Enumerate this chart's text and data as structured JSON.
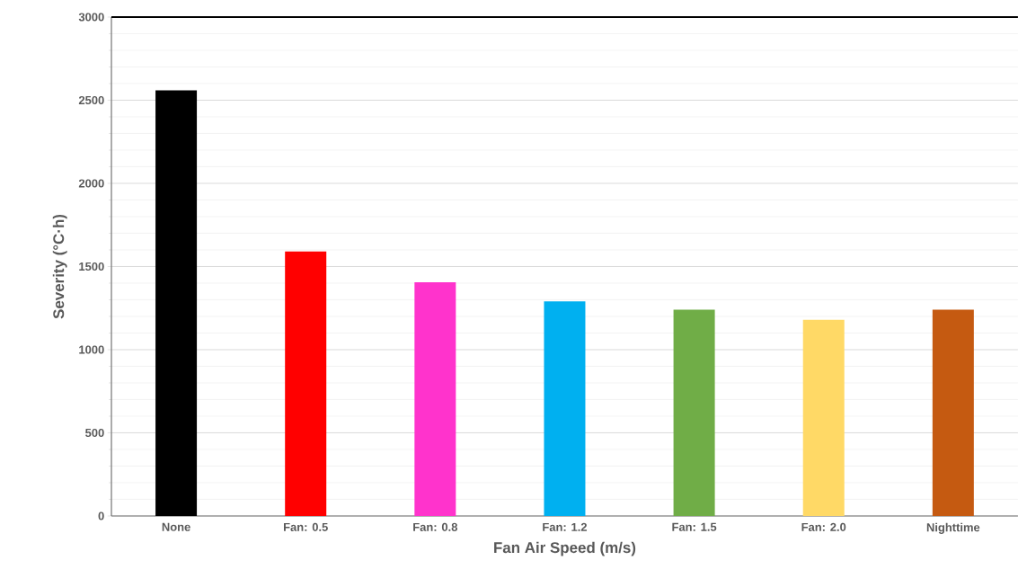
{
  "chart_data": {
    "type": "bar",
    "xlabel": "Fan Air Speed (m/s)",
    "ylabel": "Severity (°C·h)",
    "categories": [
      "None",
      "Fan: 0.5",
      "Fan: 0.8",
      "Fan: 1.2",
      "Fan: 1.5",
      "Fan: 2.0",
      "Nighttime"
    ],
    "values": [
      2560,
      1590,
      1405,
      1290,
      1240,
      1180,
      1240
    ],
    "colors": [
      "#000000",
      "#ff0000",
      "#ff33cc",
      "#00b0f0",
      "#70ad47",
      "#ffd966",
      "#c55a11"
    ],
    "ylim": [
      0,
      3000
    ],
    "yticks": [
      0,
      500,
      1000,
      1500,
      2000,
      2500,
      3000
    ],
    "grid": "y"
  }
}
